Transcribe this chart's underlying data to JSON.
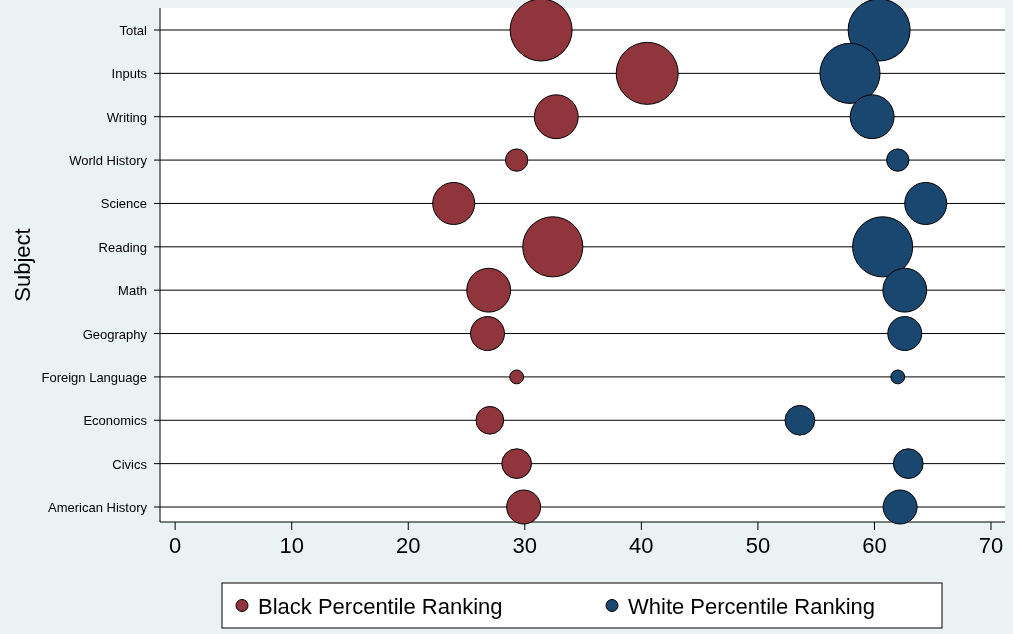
{
  "chart_data": {
    "type": "bubble",
    "orientation": "horizontal",
    "ylabel": "Subject",
    "categories": [
      "Total",
      "Inputs",
      "Writing",
      "World History",
      "Science",
      "Reading",
      "Math",
      "Geography",
      "Foreign Language",
      "Economics",
      "Civics",
      "American History"
    ],
    "xlim": [
      -1.3,
      71.2
    ],
    "xticks": [
      0,
      10,
      20,
      30,
      40,
      50,
      60,
      70
    ],
    "grid": "y",
    "legend": "bottom",
    "series": [
      {
        "name": "Black Percentile Ranking",
        "color": "#90353b",
        "values": [
          31.4,
          40.5,
          32.7,
          29.3,
          23.9,
          32.4,
          26.9,
          26.8,
          29.3,
          27.0,
          29.3,
          29.9
        ],
        "sizes": [
          1,
          1,
          0.5,
          0.13,
          0.46,
          0.94,
          0.5,
          0.3,
          0.05,
          0.2,
          0.23,
          0.3
        ]
      },
      {
        "name": "White Percentile Ranking",
        "color": "#1a476f",
        "values": [
          60.4,
          57.9,
          59.8,
          62.0,
          64.4,
          60.7,
          62.6,
          62.6,
          62.0,
          53.6,
          62.9,
          62.2
        ],
        "sizes": [
          1,
          0.94,
          0.5,
          0.13,
          0.46,
          0.94,
          0.5,
          0.3,
          0.05,
          0.23,
          0.23,
          0.3
        ]
      }
    ]
  }
}
